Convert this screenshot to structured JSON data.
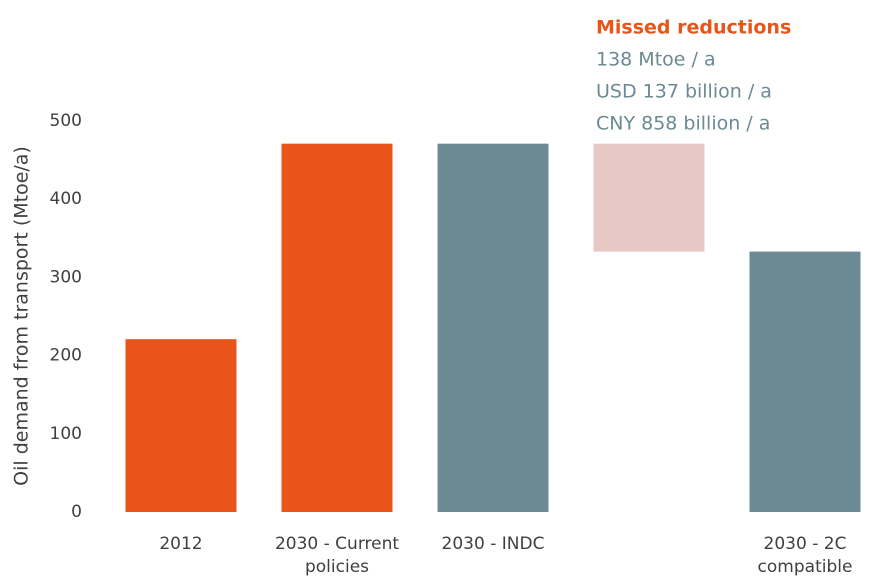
{
  "chart_data": {
    "type": "bar",
    "y_label": "Oil demand from transport (Mtoe/a)",
    "categories": [
      "2012",
      "2030 - Current policies",
      "2030 - INDC",
      null,
      "2030 - 2C compatible"
    ],
    "values": [
      221,
      471,
      471,
      138,
      333
    ],
    "colors": [
      "#e8541a",
      "#e8541a",
      "#6b8a93",
      "#e8c8c4",
      "#6b8a93"
    ],
    "ylim": [
      0,
      500
    ],
    "yticks": [
      0,
      100,
      200,
      300,
      400,
      500
    ],
    "grid": false,
    "annotation": {
      "title": "Missed reductions",
      "lines": [
        "138 Mtoe / a",
        "USD 137 billion / a",
        "CNY 858 billion / a"
      ]
    }
  }
}
